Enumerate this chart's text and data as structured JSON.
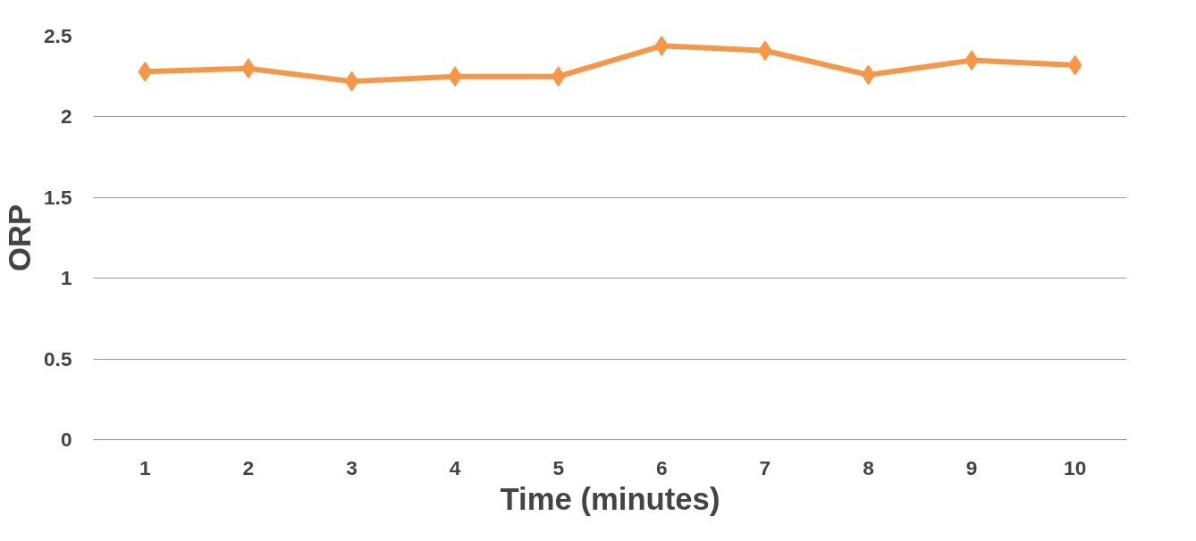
{
  "chart_data": {
    "type": "line",
    "xlabel": "Time (minutes)",
    "ylabel": "ORP",
    "categories": [
      "1",
      "2",
      "3",
      "4",
      "5",
      "6",
      "7",
      "8",
      "9",
      "10"
    ],
    "series": [
      {
        "color": "#f79646",
        "values": [
          2.28,
          2.3,
          2.22,
          2.25,
          2.25,
          2.44,
          2.41,
          2.26,
          2.35,
          2.32
        ]
      }
    ],
    "ylim": [
      0,
      2.5
    ],
    "yticks": [
      0,
      0.5,
      1,
      1.5,
      2,
      2.5
    ],
    "grid": "y",
    "marker": "diamond",
    "line_style": "solid"
  }
}
